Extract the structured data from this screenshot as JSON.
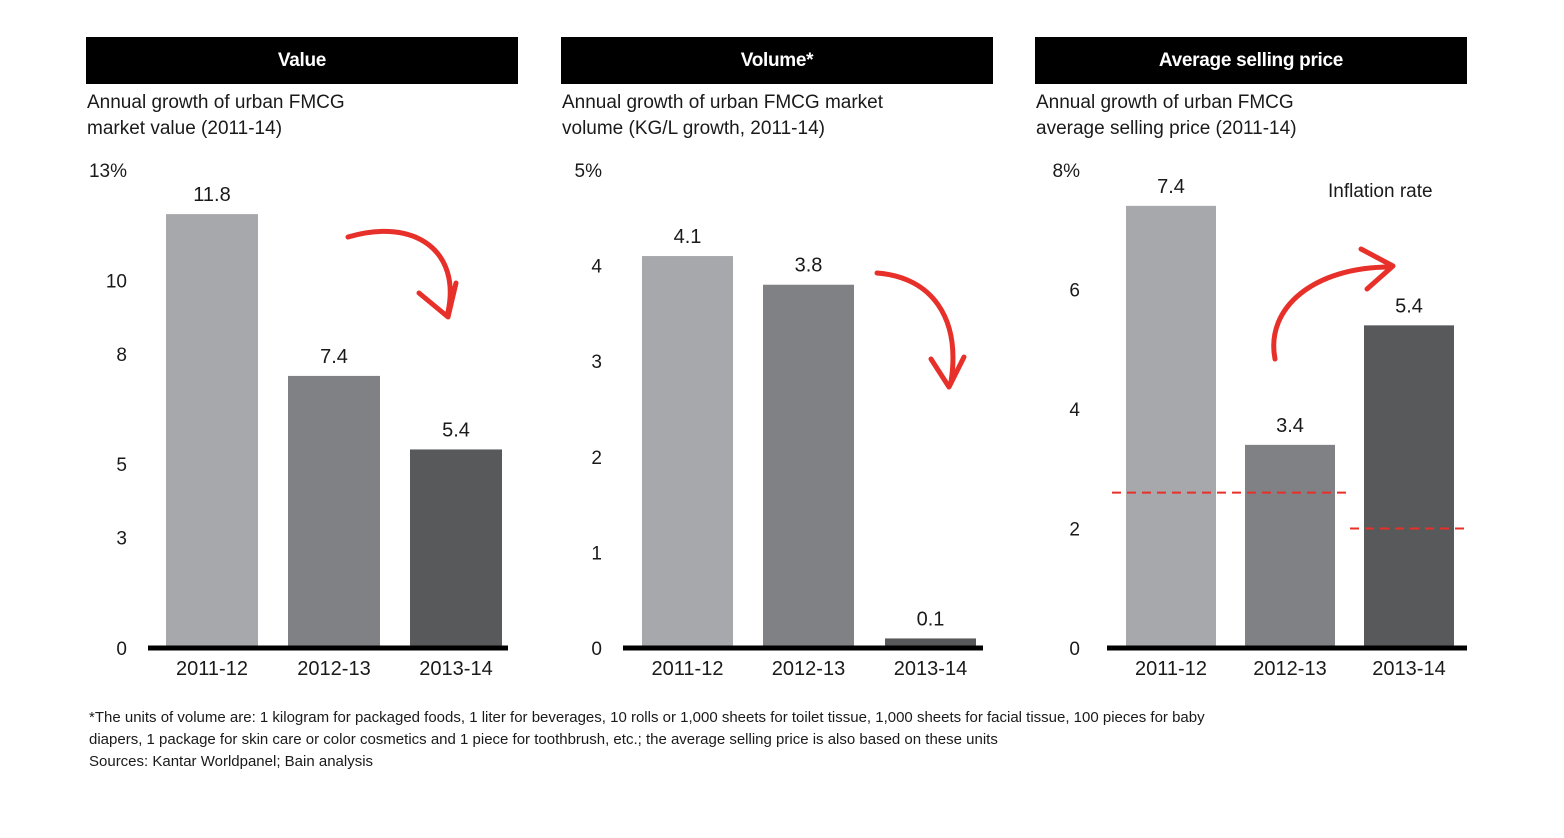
{
  "chart_data": [
    {
      "type": "bar",
      "header": "Value",
      "title": "Annual growth of urban FMCG\nmarket value (2011-14)",
      "categories": [
        "2011-12",
        "2012-13",
        "2013-14"
      ],
      "values": [
        11.8,
        7.4,
        5.4
      ],
      "data_labels": [
        "11.8",
        "7.4",
        "5.4"
      ],
      "ylim": [
        0,
        13
      ],
      "yticks": [
        0,
        3,
        5,
        8,
        10,
        13
      ],
      "yticklabels": [
        "0",
        "3",
        "5",
        "8",
        "10",
        "13%"
      ],
      "bar_colors": [
        "#a7a8ab",
        "#808184",
        "#58595b"
      ],
      "annotation": "red arrow pointing down (decline)",
      "grid": false
    },
    {
      "type": "bar",
      "header": "Volume*",
      "title": "Annual growth of urban FMCG market\nvolume (KG/L growth, 2011-14)",
      "categories": [
        "2011-12",
        "2012-13",
        "2013-14"
      ],
      "values": [
        4.1,
        3.8,
        0.1
      ],
      "data_labels": [
        "4.1",
        "3.8",
        "0.1"
      ],
      "ylim": [
        0,
        5
      ],
      "yticks": [
        0,
        1,
        2,
        3,
        4,
        5
      ],
      "yticklabels": [
        "0",
        "1",
        "2",
        "3",
        "4",
        "5%"
      ],
      "bar_colors": [
        "#a7a8ab",
        "#808184",
        "#58595b"
      ],
      "annotation": "red arrow pointing down (decline)",
      "grid": false
    },
    {
      "type": "bar",
      "header": "Average selling price",
      "title": "Annual growth of urban FMCG\naverage selling price (2011-14)",
      "categories": [
        "2011-12",
        "2012-13",
        "2013-14"
      ],
      "values": [
        7.4,
        3.4,
        5.4
      ],
      "data_labels": [
        "7.4",
        "3.4",
        "5.4"
      ],
      "ylim": [
        0,
        8
      ],
      "yticks": [
        0,
        2,
        4,
        6,
        8
      ],
      "yticklabels": [
        "0",
        "2",
        "4",
        "6",
        "8%"
      ],
      "bar_colors": [
        "#a7a8ab",
        "#808184",
        "#58595b"
      ],
      "reference_series": {
        "name": "Inflation rate",
        "color": "#e8302a",
        "style": "dashed",
        "segments": [
          {
            "from": "2011-12",
            "to": "2012-13",
            "value": 2.6
          },
          {
            "from": "2013-14",
            "to": "2013-14",
            "value": 2.0
          }
        ]
      },
      "annotation": "red arrow pointing up (increase)",
      "grid": false
    }
  ],
  "footnote": {
    "line1": "*The units of volume are: 1 kilogram for packaged foods, 1 liter for beverages, 10 rolls or 1,000 sheets for toilet tissue, 1,000 sheets for facial tissue, 100 pieces for baby",
    "line2": "diapers, 1 package for skin care or color cosmetics and 1 piece for toothbrush, etc.; the average selling price is also based on these units",
    "sources": "Sources: Kantar Worldpanel; Bain analysis"
  },
  "colors": {
    "header_bg": "#000000",
    "arrow": "#e8302a",
    "axis": "#000000"
  }
}
